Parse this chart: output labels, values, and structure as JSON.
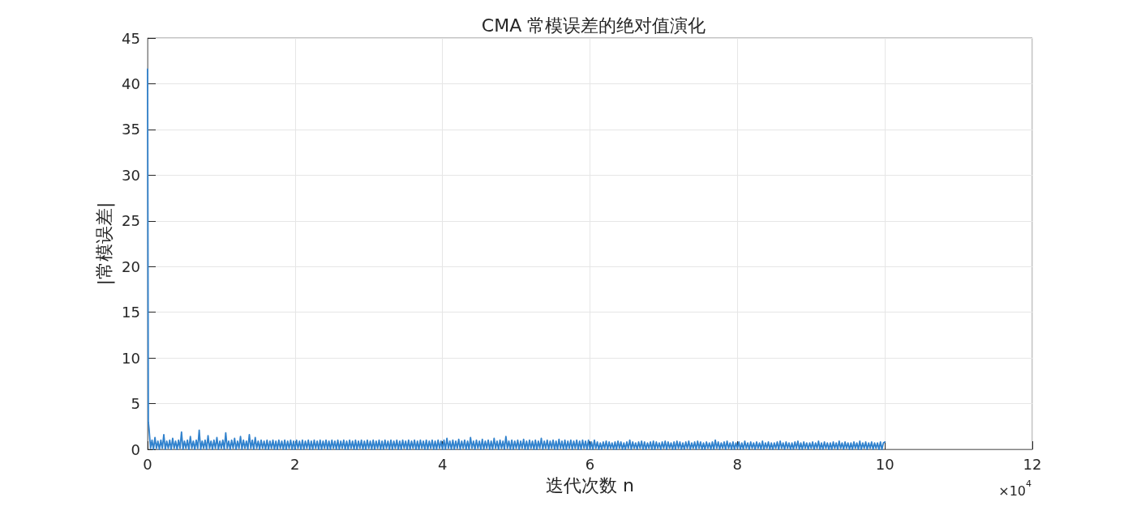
{
  "chart_data": {
    "type": "line",
    "title": "CMA 常模误差的绝对值演化",
    "xlabel": "迭代次数 n",
    "ylabel": "|常模误差|",
    "annotations": [
      "×10$^{4}$"
    ],
    "xlim": [
      0,
      12
    ],
    "xticks": [
      0,
      2,
      4,
      6,
      8,
      10,
      12
    ],
    "ylim": [
      0,
      45
    ],
    "yticks": [
      0,
      5,
      10,
      15,
      20,
      25,
      30,
      35,
      40,
      45
    ],
    "grid": true,
    "color": "#3182cd",
    "x": [
      0.0001,
      0.01,
      0.02,
      0.04,
      0.06,
      0.08,
      0.1,
      0.12,
      0.14,
      0.16,
      0.18,
      0.2,
      0.22,
      0.24,
      0.26,
      0.28,
      0.3,
      0.32,
      0.34,
      0.36,
      0.38,
      0.4,
      0.42,
      0.44,
      0.46,
      0.48,
      0.5,
      0.52,
      0.54,
      0.56,
      0.58,
      0.6,
      0.62,
      0.64,
      0.66,
      0.68,
      0.7,
      0.72,
      0.74,
      0.76,
      0.78,
      0.8,
      0.82,
      0.84,
      0.86,
      0.88,
      0.9,
      0.92,
      0.94,
      0.96,
      0.98,
      1,
      1.02,
      1.04,
      1.06,
      1.08,
      1.1,
      1.12,
      1.14,
      1.16,
      1.18,
      1.2,
      1.22,
      1.24,
      1.26,
      1.28,
      1.3,
      1.32,
      1.34,
      1.36,
      1.38,
      1.4,
      1.42,
      1.44,
      1.46,
      1.48,
      1.5,
      1.52,
      1.54,
      1.56,
      1.58,
      1.6,
      1.62,
      1.64,
      1.66,
      1.68,
      1.7,
      1.72,
      1.74,
      1.76,
      1.78,
      1.8,
      1.82,
      1.84,
      1.86,
      1.88,
      1.9,
      1.92,
      1.94,
      1.96,
      1.98,
      2,
      2.02,
      2.04,
      2.06,
      2.08,
      2.1,
      2.12,
      2.14,
      2.16,
      2.18,
      2.2,
      2.22,
      2.24,
      2.26,
      2.28,
      2.3,
      2.32,
      2.34,
      2.36,
      2.38,
      2.4,
      2.42,
      2.44,
      2.46,
      2.48,
      2.5,
      2.52,
      2.54,
      2.56,
      2.58,
      2.6,
      2.62,
      2.64,
      2.66,
      2.68,
      2.7,
      2.72,
      2.74,
      2.76,
      2.78,
      2.8,
      2.82,
      2.84,
      2.86,
      2.88,
      2.9,
      2.92,
      2.94,
      2.96,
      2.98,
      3,
      3.02,
      3.04,
      3.06,
      3.08,
      3.1,
      3.12,
      3.14,
      3.16,
      3.18,
      3.2,
      3.22,
      3.24,
      3.26,
      3.28,
      3.3,
      3.32,
      3.34,
      3.36,
      3.38,
      3.4,
      3.42,
      3.44,
      3.46,
      3.48,
      3.5,
      3.52,
      3.54,
      3.56,
      3.58,
      3.6,
      3.62,
      3.64,
      3.66,
      3.68,
      3.7,
      3.72,
      3.74,
      3.76,
      3.78,
      3.8,
      3.82,
      3.84,
      3.86,
      3.88,
      3.9,
      3.92,
      3.94,
      3.96,
      3.98,
      4,
      4.02,
      4.04,
      4.06,
      4.08,
      4.1,
      4.12,
      4.14,
      4.16,
      4.18,
      4.2,
      4.22,
      4.24,
      4.26,
      4.28,
      4.3,
      4.32,
      4.34,
      4.36,
      4.38,
      4.4,
      4.42,
      4.44,
      4.46,
      4.48,
      4.5,
      4.52,
      4.54,
      4.56,
      4.58,
      4.6,
      4.62,
      4.64,
      4.66,
      4.68,
      4.7,
      4.72,
      4.74,
      4.76,
      4.78,
      4.8,
      4.82,
      4.84,
      4.86,
      4.88,
      4.9,
      4.92,
      4.94,
      4.96,
      4.98,
      5,
      5.02,
      5.04,
      5.06,
      5.08,
      5.1,
      5.12,
      5.14,
      5.16,
      5.18,
      5.2,
      5.22,
      5.24,
      5.26,
      5.28,
      5.3,
      5.32,
      5.34,
      5.36,
      5.38,
      5.4,
      5.42,
      5.44,
      5.46,
      5.48,
      5.5,
      5.52,
      5.54,
      5.56,
      5.58,
      5.6,
      5.62,
      5.64,
      5.66,
      5.68,
      5.7,
      5.72,
      5.74,
      5.76,
      5.78,
      5.8,
      5.82,
      5.84,
      5.86,
      5.88,
      5.9,
      5.92,
      5.94,
      5.96,
      5.98,
      6,
      6.02,
      6.04,
      6.06,
      6.08,
      6.1,
      6.12,
      6.14,
      6.16,
      6.18,
      6.2,
      6.22,
      6.24,
      6.26,
      6.28,
      6.3,
      6.32,
      6.34,
      6.36,
      6.38,
      6.4,
      6.42,
      6.44,
      6.46,
      6.48,
      6.5,
      6.52,
      6.54,
      6.56,
      6.58,
      6.6,
      6.62,
      6.64,
      6.66,
      6.68,
      6.7,
      6.72,
      6.74,
      6.76,
      6.78,
      6.8,
      6.82,
      6.84,
      6.86,
      6.88,
      6.9,
      6.92,
      6.94,
      6.96,
      6.98,
      7,
      7.02,
      7.04,
      7.06,
      7.08,
      7.1,
      7.12,
      7.14,
      7.16,
      7.18,
      7.2,
      7.22,
      7.24,
      7.26,
      7.28,
      7.3,
      7.32,
      7.34,
      7.36,
      7.38,
      7.4,
      7.42,
      7.44,
      7.46,
      7.48,
      7.5,
      7.52,
      7.54,
      7.56,
      7.58,
      7.6,
      7.62,
      7.64,
      7.66,
      7.68,
      7.7,
      7.72,
      7.74,
      7.76,
      7.78,
      7.8,
      7.82,
      7.84,
      7.86,
      7.88,
      7.9,
      7.92,
      7.94,
      7.96,
      7.98,
      8,
      8.02,
      8.04,
      8.06,
      8.08,
      8.1,
      8.12,
      8.14,
      8.16,
      8.18,
      8.2,
      8.22,
      8.24,
      8.26,
      8.28,
      8.3,
      8.32,
      8.34,
      8.36,
      8.38,
      8.4,
      8.42,
      8.44,
      8.46,
      8.48,
      8.5,
      8.52,
      8.54,
      8.56,
      8.58,
      8.6,
      8.62,
      8.64,
      8.66,
      8.68,
      8.7,
      8.72,
      8.74,
      8.76,
      8.78,
      8.8,
      8.82,
      8.84,
      8.86,
      8.88,
      8.9,
      8.92,
      8.94,
      8.96,
      8.98,
      9,
      9.02,
      9.04,
      9.06,
      9.08,
      9.1,
      9.12,
      9.14,
      9.16,
      9.18,
      9.2,
      9.22,
      9.24,
      9.26,
      9.28,
      9.3,
      9.32,
      9.34,
      9.36,
      9.38,
      9.4,
      9.42,
      9.44,
      9.46,
      9.48,
      9.5,
      9.52,
      9.54,
      9.56,
      9.58,
      9.6,
      9.62,
      9.64,
      9.66,
      9.68,
      9.7,
      9.72,
      9.74,
      9.76,
      9.78,
      9.8,
      9.82,
      9.84,
      9.86,
      9.88,
      9.9,
      9.92,
      9.94,
      9.96,
      9.98,
      10
    ],
    "values": [
      41.6,
      3.0,
      2.2,
      0.1,
      1.0,
      0.0,
      1.3,
      0.1,
      0.9,
      0.0,
      1.0,
      0.1,
      1.6,
      0.0,
      0.9,
      0.1,
      1.0,
      0.0,
      1.2,
      0.1,
      0.9,
      0.0,
      1.0,
      0.1,
      1.9,
      0.0,
      0.9,
      0.1,
      1.0,
      0.0,
      1.4,
      0.1,
      0.9,
      0.0,
      1.0,
      0.1,
      2.1,
      0.0,
      0.9,
      0.1,
      1.0,
      0.0,
      1.5,
      0.1,
      0.9,
      0.0,
      1.0,
      0.1,
      1.3,
      0.0,
      0.9,
      0.1,
      1.0,
      0.0,
      1.8,
      0.1,
      0.9,
      0.0,
      1.0,
      0.1,
      1.2,
      0.0,
      0.9,
      0.1,
      1.4,
      0.0,
      1.0,
      0.1,
      0.9,
      0.0,
      1.6,
      0.1,
      1.0,
      0.0,
      1.3,
      0.1,
      0.9,
      0.0,
      1.0,
      0.1,
      0.9,
      0.0,
      1.0,
      0.0,
      0.9,
      0.1,
      1.0,
      0.0,
      0.9,
      0.0,
      1.0,
      0.1,
      0.9,
      0.0,
      1.0,
      0.0,
      0.9,
      0.1,
      1.0,
      0.0,
      0.9,
      0.0,
      1.0,
      0.1,
      0.9,
      0.0,
      1.0,
      0.0,
      0.9,
      0.1,
      1.0,
      0.0,
      0.9,
      0.0,
      1.0,
      0.1,
      0.9,
      0.0,
      1.0,
      0.0,
      0.9,
      0.1,
      1.0,
      0.0,
      0.9,
      0.0,
      1.0,
      0.1,
      0.9,
      0.0,
      1.0,
      0.0,
      0.9,
      0.1,
      1.0,
      0.0,
      0.9,
      0.0,
      1.0,
      0.1,
      0.9,
      0.0,
      1.0,
      0.0,
      0.9,
      0.1,
      1.0,
      0.0,
      0.9,
      0.0,
      1.0,
      0.1,
      0.9,
      0.0,
      1.0,
      0.0,
      0.9,
      0.1,
      1.0,
      0.0,
      0.9,
      0.0,
      1.0,
      0.1,
      0.9,
      0.0,
      1.0,
      0.0,
      0.9,
      0.1,
      1.0,
      0.0,
      0.9,
      0.0,
      1.0,
      0.1,
      0.9,
      0.0,
      1.0,
      0.0,
      0.9,
      0.1,
      1.0,
      0.0,
      0.9,
      0.0,
      1.0,
      0.1,
      0.9,
      0.0,
      1.0,
      0.0,
      0.9,
      0.1,
      1.0,
      0.0,
      0.9,
      0.0,
      1.0,
      0.1,
      0.9,
      0.0,
      1.0,
      0.0,
      1.2,
      0.1,
      0.9,
      0.0,
      1.0,
      0.0,
      0.9,
      0.1,
      1.1,
      0.0,
      0.9,
      0.1,
      1.0,
      0.0,
      0.9,
      0.0,
      1.3,
      0.1,
      0.9,
      0.0,
      1.0,
      0.1,
      0.9,
      0.0,
      1.1,
      0.0,
      0.9,
      0.1,
      1.0,
      0.0,
      0.9,
      0.0,
      1.2,
      0.1,
      0.9,
      0.0,
      1.0,
      0.1,
      0.9,
      0.0,
      1.4,
      0.1,
      0.9,
      0.0,
      1.0,
      0.0,
      0.9,
      0.1,
      1.0,
      0.0,
      0.9,
      0.1,
      1.1,
      0.0,
      0.9,
      0.0,
      1.0,
      0.1,
      0.9,
      0.0,
      1.0,
      0.0,
      0.9,
      0.1,
      1.2,
      0.0,
      0.9,
      0.1,
      1.0,
      0.0,
      0.9,
      0.1,
      1.0,
      0.0,
      0.9,
      0.0,
      1.1,
      0.1,
      0.9,
      0.0,
      1.0,
      0.0,
      0.9,
      0.1,
      1.0,
      0.0,
      0.9,
      0.1,
      1.0,
      0.0,
      0.9,
      0.0,
      1.0,
      0.1,
      0.9,
      0.0,
      1.0,
      0.0,
      0.8,
      0.0,
      1.0,
      0.1,
      0.8,
      0.0,
      0.7,
      0.0,
      0.8,
      0.1,
      0.9,
      0.0,
      0.8,
      0.1,
      0.7,
      0.0,
      0.8,
      0.0,
      0.9,
      0.1,
      0.8,
      0.0,
      0.7,
      0.0,
      0.8,
      0.1,
      1.0,
      0.0,
      0.8,
      0.1,
      0.7,
      0.0,
      0.8,
      0.1,
      0.9,
      0.0,
      0.8,
      0.0,
      0.7,
      0.1,
      0.8,
      0.0,
      0.9,
      0.0,
      0.8,
      0.1,
      0.7,
      0.0,
      0.8,
      0.1,
      0.9,
      0.0,
      0.8,
      0.1,
      0.7,
      0.0,
      0.8,
      0.0,
      0.9,
      0.1,
      0.8,
      0.0,
      0.7,
      0.0,
      0.8,
      0.1,
      0.9,
      0.0,
      0.7,
      0.1,
      0.8,
      0.0,
      0.9,
      0.1,
      0.8,
      0.0,
      0.7,
      0.0,
      0.8,
      0.1,
      0.7,
      0.0,
      0.8,
      0.0,
      1.0,
      0.1,
      0.8,
      0.0,
      0.7,
      0.1,
      0.8,
      0.0,
      0.9,
      0.1,
      0.7,
      0.0,
      0.8,
      0.0,
      0.7,
      0.1,
      0.8,
      0.0,
      0.7,
      0.0,
      0.9,
      0.1,
      0.7,
      0.0,
      0.8,
      0.1,
      0.7,
      0.0,
      0.8,
      0.1,
      0.7,
      0.0,
      0.9,
      0.0,
      0.7,
      0.1,
      0.8,
      0.0,
      0.7,
      0.0,
      0.7,
      0.1,
      0.8,
      0.0,
      0.9,
      0.1,
      0.7,
      0.0,
      0.8,
      0.1,
      0.7,
      0.0,
      0.7,
      0.0,
      0.8,
      0.1,
      0.9,
      0.0,
      0.7,
      0.0,
      0.8,
      0.1,
      0.7,
      0.0,
      0.7,
      0.1,
      0.8,
      0.0,
      0.7,
      0.1,
      0.9,
      0.0,
      0.7,
      0.0,
      0.8,
      0.1,
      0.7,
      0.0,
      0.7,
      0.0,
      0.8,
      0.1,
      0.7,
      0.0,
      0.9,
      0.1,
      0.7,
      0.0,
      0.8,
      0.1,
      0.7,
      0.0,
      0.7,
      0.0,
      0.8,
      0.1,
      0.7,
      0.0,
      0.9,
      0.0,
      0.7,
      0.1,
      0.8,
      0.0,
      0.7,
      0.1,
      0.8,
      0.0,
      0.7,
      0.1,
      0.7,
      0.0,
      0.8,
      0.0,
      0.7,
      0.8
    ]
  }
}
